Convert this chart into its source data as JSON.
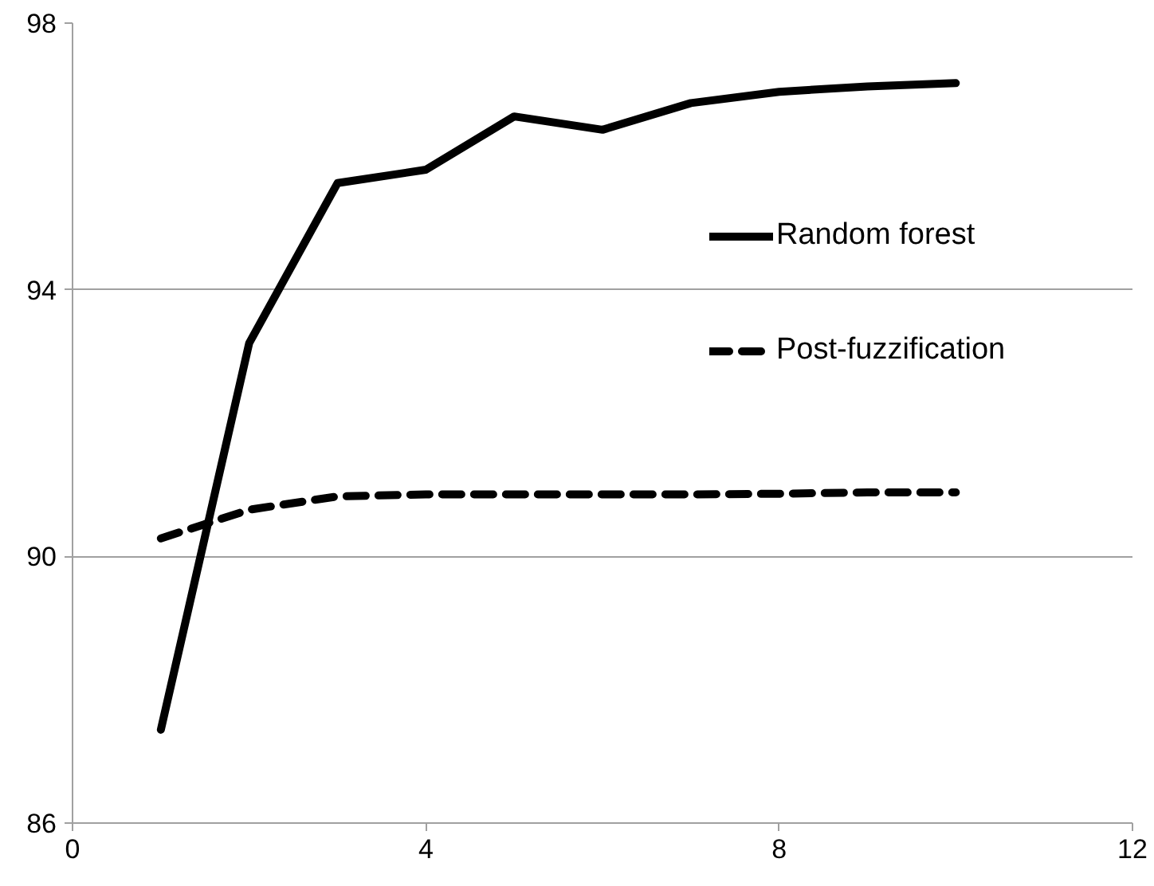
{
  "chart_data": {
    "type": "line",
    "x": [
      1,
      2,
      3,
      4,
      5,
      6,
      7,
      8,
      9,
      10
    ],
    "series": [
      {
        "name": "Random forest",
        "color": "#000000",
        "line_style": "solid",
        "values": [
          87.4,
          93.2,
          95.6,
          95.8,
          96.6,
          96.4,
          96.8,
          96.97,
          97.05,
          97.1
        ]
      },
      {
        "name": "Post-fuzzification",
        "color": "#000000",
        "line_style": "dashed",
        "values": [
          90.27,
          90.7,
          90.9,
          90.93,
          90.93,
          90.93,
          90.93,
          90.94,
          90.96,
          90.96
        ]
      }
    ],
    "xlim": [
      0,
      12
    ],
    "xticks": [
      0,
      4,
      8,
      12
    ],
    "ylim": [
      86,
      98
    ],
    "yticks": [
      86,
      90,
      94,
      98
    ],
    "grid": "y",
    "legend": "right",
    "marker": "none"
  }
}
